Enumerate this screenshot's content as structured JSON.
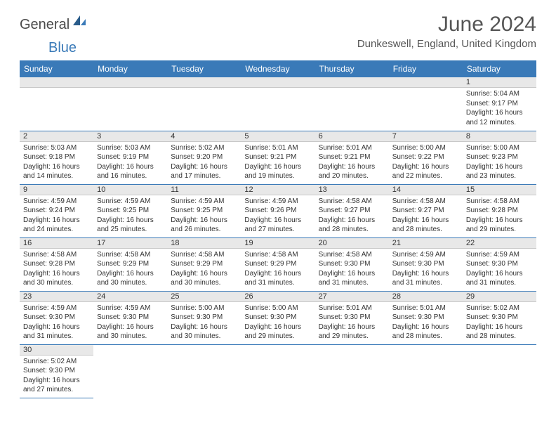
{
  "brand": {
    "part1": "General",
    "part2": "Blue"
  },
  "header": {
    "title": "June 2024",
    "location": "Dunkeswell, England, United Kingdom"
  },
  "colors": {
    "header_bg": "#3a7ab8",
    "header_text": "#ffffff",
    "daynum_bg": "#e8e8e8",
    "cell_border": "#3a7ab8"
  },
  "weekdays": [
    "Sunday",
    "Monday",
    "Tuesday",
    "Wednesday",
    "Thursday",
    "Friday",
    "Saturday"
  ],
  "weeks": [
    [
      null,
      null,
      null,
      null,
      null,
      null,
      {
        "n": "1",
        "sunrise": "5:04 AM",
        "sunset": "9:17 PM",
        "daylight": "16 hours and 12 minutes."
      }
    ],
    [
      {
        "n": "2",
        "sunrise": "5:03 AM",
        "sunset": "9:18 PM",
        "daylight": "16 hours and 14 minutes."
      },
      {
        "n": "3",
        "sunrise": "5:03 AM",
        "sunset": "9:19 PM",
        "daylight": "16 hours and 16 minutes."
      },
      {
        "n": "4",
        "sunrise": "5:02 AM",
        "sunset": "9:20 PM",
        "daylight": "16 hours and 17 minutes."
      },
      {
        "n": "5",
        "sunrise": "5:01 AM",
        "sunset": "9:21 PM",
        "daylight": "16 hours and 19 minutes."
      },
      {
        "n": "6",
        "sunrise": "5:01 AM",
        "sunset": "9:21 PM",
        "daylight": "16 hours and 20 minutes."
      },
      {
        "n": "7",
        "sunrise": "5:00 AM",
        "sunset": "9:22 PM",
        "daylight": "16 hours and 22 minutes."
      },
      {
        "n": "8",
        "sunrise": "5:00 AM",
        "sunset": "9:23 PM",
        "daylight": "16 hours and 23 minutes."
      }
    ],
    [
      {
        "n": "9",
        "sunrise": "4:59 AM",
        "sunset": "9:24 PM",
        "daylight": "16 hours and 24 minutes."
      },
      {
        "n": "10",
        "sunrise": "4:59 AM",
        "sunset": "9:25 PM",
        "daylight": "16 hours and 25 minutes."
      },
      {
        "n": "11",
        "sunrise": "4:59 AM",
        "sunset": "9:25 PM",
        "daylight": "16 hours and 26 minutes."
      },
      {
        "n": "12",
        "sunrise": "4:59 AM",
        "sunset": "9:26 PM",
        "daylight": "16 hours and 27 minutes."
      },
      {
        "n": "13",
        "sunrise": "4:58 AM",
        "sunset": "9:27 PM",
        "daylight": "16 hours and 28 minutes."
      },
      {
        "n": "14",
        "sunrise": "4:58 AM",
        "sunset": "9:27 PM",
        "daylight": "16 hours and 28 minutes."
      },
      {
        "n": "15",
        "sunrise": "4:58 AM",
        "sunset": "9:28 PM",
        "daylight": "16 hours and 29 minutes."
      }
    ],
    [
      {
        "n": "16",
        "sunrise": "4:58 AM",
        "sunset": "9:28 PM",
        "daylight": "16 hours and 30 minutes."
      },
      {
        "n": "17",
        "sunrise": "4:58 AM",
        "sunset": "9:29 PM",
        "daylight": "16 hours and 30 minutes."
      },
      {
        "n": "18",
        "sunrise": "4:58 AM",
        "sunset": "9:29 PM",
        "daylight": "16 hours and 30 minutes."
      },
      {
        "n": "19",
        "sunrise": "4:58 AM",
        "sunset": "9:29 PM",
        "daylight": "16 hours and 31 minutes."
      },
      {
        "n": "20",
        "sunrise": "4:58 AM",
        "sunset": "9:30 PM",
        "daylight": "16 hours and 31 minutes."
      },
      {
        "n": "21",
        "sunrise": "4:59 AM",
        "sunset": "9:30 PM",
        "daylight": "16 hours and 31 minutes."
      },
      {
        "n": "22",
        "sunrise": "4:59 AM",
        "sunset": "9:30 PM",
        "daylight": "16 hours and 31 minutes."
      }
    ],
    [
      {
        "n": "23",
        "sunrise": "4:59 AM",
        "sunset": "9:30 PM",
        "daylight": "16 hours and 31 minutes."
      },
      {
        "n": "24",
        "sunrise": "4:59 AM",
        "sunset": "9:30 PM",
        "daylight": "16 hours and 30 minutes."
      },
      {
        "n": "25",
        "sunrise": "5:00 AM",
        "sunset": "9:30 PM",
        "daylight": "16 hours and 30 minutes."
      },
      {
        "n": "26",
        "sunrise": "5:00 AM",
        "sunset": "9:30 PM",
        "daylight": "16 hours and 29 minutes."
      },
      {
        "n": "27",
        "sunrise": "5:01 AM",
        "sunset": "9:30 PM",
        "daylight": "16 hours and 29 minutes."
      },
      {
        "n": "28",
        "sunrise": "5:01 AM",
        "sunset": "9:30 PM",
        "daylight": "16 hours and 28 minutes."
      },
      {
        "n": "29",
        "sunrise": "5:02 AM",
        "sunset": "9:30 PM",
        "daylight": "16 hours and 28 minutes."
      }
    ],
    [
      {
        "n": "30",
        "sunrise": "5:02 AM",
        "sunset": "9:30 PM",
        "daylight": "16 hours and 27 minutes."
      },
      null,
      null,
      null,
      null,
      null,
      null
    ]
  ],
  "labels": {
    "sunrise": "Sunrise:",
    "sunset": "Sunset:",
    "daylight": "Daylight:"
  }
}
